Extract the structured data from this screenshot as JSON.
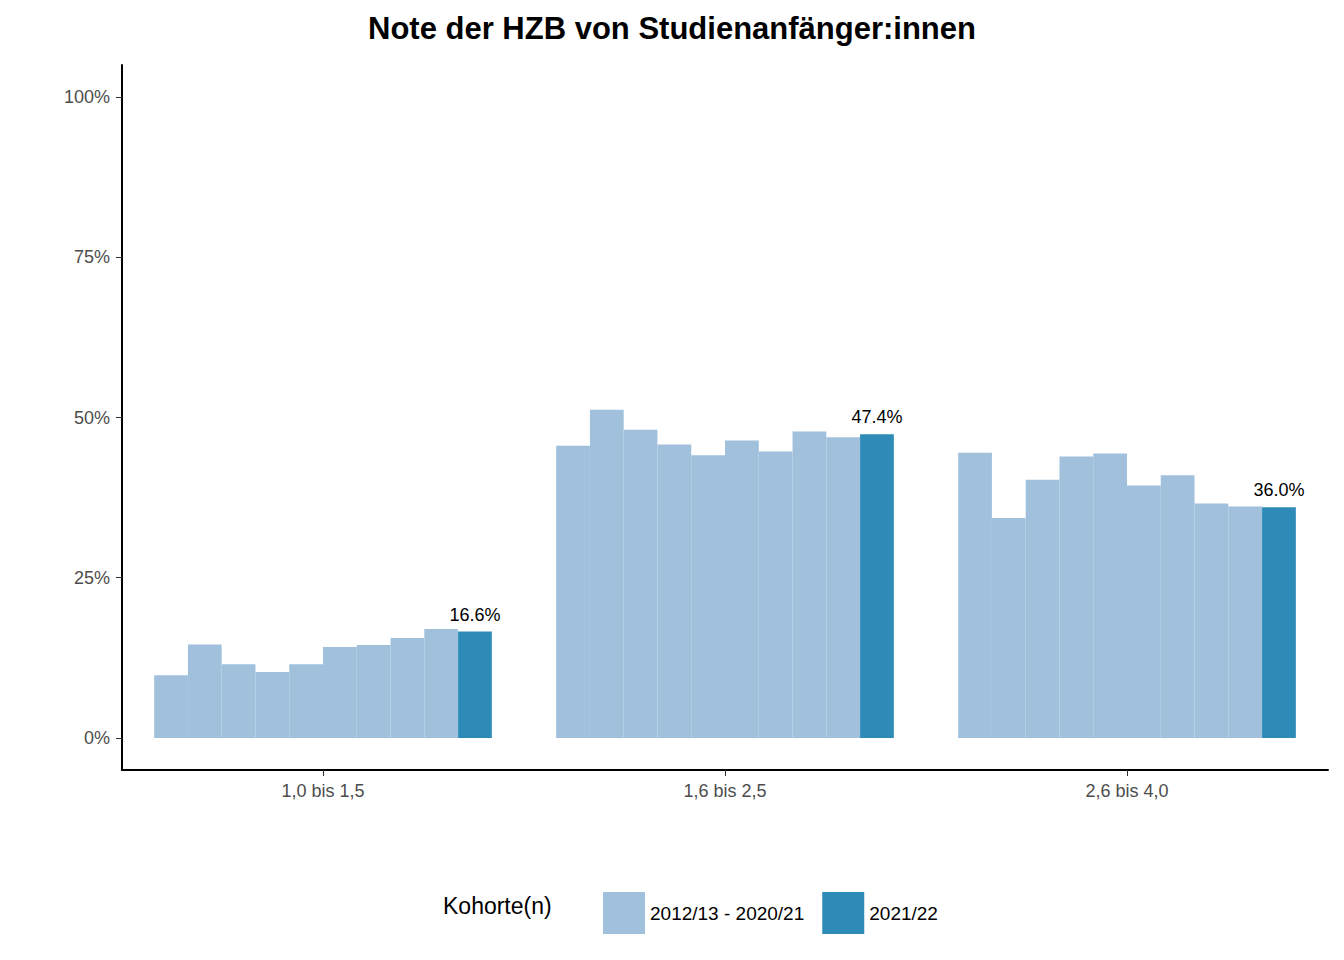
{
  "chart_data": {
    "type": "bar",
    "title": "Note der HZB von Studienanfänger:innen",
    "legend_title": "Kohorte(n)",
    "categories": [
      "1,0 bis 1,5",
      "1,6 bis 2,5",
      "2,6 bis 4,0"
    ],
    "series": [
      {
        "name": "2012/13 - 2020/21",
        "color": "#a1c0dc",
        "values": [
          [
            9.8,
            14.6,
            11.5,
            10.3,
            11.5,
            14.2,
            14.5,
            15.6,
            17.0
          ],
          [
            45.6,
            51.2,
            48.1,
            45.8,
            44.1,
            46.4,
            44.7,
            47.8,
            46.9
          ],
          [
            44.5,
            34.3,
            40.3,
            43.9,
            44.4,
            39.4,
            41.0,
            36.6,
            36.1
          ]
        ]
      },
      {
        "name": "2021/22",
        "color": "#2e8bb8",
        "values": [
          16.6,
          47.4,
          36.0
        ],
        "value_labels": [
          "16.6%",
          "47.4%",
          "36.0%"
        ],
        "data_labels": true
      }
    ],
    "ylim": [
      -5,
      105
    ],
    "yticks": [
      {
        "value": 0,
        "label": "0%"
      },
      {
        "value": 25,
        "label": "25%"
      },
      {
        "value": 50,
        "label": "50%"
      },
      {
        "value": 75,
        "label": "75%"
      },
      {
        "value": 100,
        "label": "100%"
      }
    ],
    "grid": false,
    "legend": "bottom"
  }
}
